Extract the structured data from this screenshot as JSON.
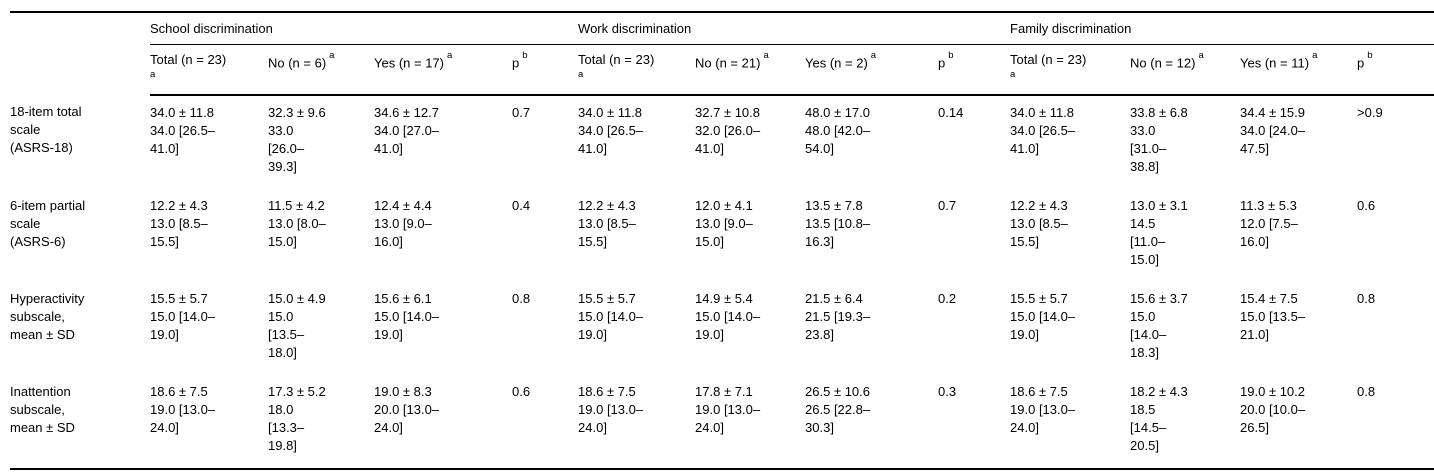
{
  "table": {
    "colors": {
      "background": "#ffffff",
      "text": "#000000",
      "rule": "#000000"
    },
    "groups": [
      {
        "name": "School discrimination",
        "columns": [
          {
            "label": "Total (n = 23)",
            "sup": "a"
          },
          {
            "label": "No (n = 6)",
            "sup": "a"
          },
          {
            "label": "Yes (n = 17)",
            "sup": "a"
          },
          {
            "label": "p",
            "sup": "b"
          }
        ]
      },
      {
        "name": "Work discrimination",
        "columns": [
          {
            "label": "Total (n = 23)",
            "sup": "a"
          },
          {
            "label": "No (n = 21)",
            "sup": "a"
          },
          {
            "label": "Yes (n = 2)",
            "sup": "a"
          },
          {
            "label": "p",
            "sup": "b"
          }
        ]
      },
      {
        "name": "Family discrimination",
        "columns": [
          {
            "label": "Total (n = 23)",
            "sup": "a"
          },
          {
            "label": "No (n = 12)",
            "sup": "a"
          },
          {
            "label": "Yes (n = 11)",
            "sup": "a"
          },
          {
            "label": "p",
            "sup": "b"
          }
        ]
      }
    ],
    "rows": [
      {
        "label": "18-item total\nscale\n(ASRS-18)",
        "cells": [
          "34.0 ± 11.8\n34.0 [26.5–\n41.0]",
          "32.3 ± 9.6\n33.0\n[26.0–\n39.3]",
          "34.6 ± 12.7\n34.0 [27.0–\n41.0]",
          "0.7",
          "34.0 ± 11.8\n34.0 [26.5–\n41.0]",
          "32.7 ± 10.8\n32.0 [26.0–\n41.0]",
          "48.0 ± 17.0\n48.0 [42.0–\n54.0]",
          "0.14",
          "34.0 ± 11.8\n34.0 [26.5–\n41.0]",
          "33.8 ± 6.8\n33.0\n[31.0–\n38.8]",
          "34.4 ± 15.9\n34.0 [24.0–\n47.5]",
          ">0.9"
        ]
      },
      {
        "label": "6-item partial\nscale\n(ASRS-6)",
        "cells": [
          "12.2 ± 4.3\n13.0 [8.5–\n15.5]",
          "11.5 ± 4.2\n13.0 [8.0–\n15.0]",
          "12.4 ± 4.4\n13.0 [9.0–\n16.0]",
          "0.4",
          "12.2 ± 4.3\n13.0 [8.5–\n15.5]",
          "12.0 ± 4.1\n13.0 [9.0–\n15.0]",
          "13.5 ± 7.8\n13.5 [10.8–\n16.3]",
          "0.7",
          "12.2 ± 4.3\n13.0 [8.5–\n15.5]",
          "13.0 ± 3.1\n14.5\n[11.0–\n15.0]",
          "11.3 ± 5.3\n12.0 [7.5–\n16.0]",
          "0.6"
        ]
      },
      {
        "label": "Hyperactivity\nsubscale,\nmean ± SD",
        "cells": [
          "15.5 ± 5.7\n15.0 [14.0–\n19.0]",
          "15.0 ± 4.9\n15.0\n[13.5–\n18.0]",
          "15.6 ± 6.1\n15.0 [14.0–\n19.0]",
          "0.8",
          "15.5 ± 5.7\n15.0 [14.0–\n19.0]",
          "14.9 ± 5.4\n15.0 [14.0–\n19.0]",
          "21.5 ± 6.4\n21.5 [19.3–\n23.8]",
          "0.2",
          "15.5 ± 5.7\n15.0 [14.0–\n19.0]",
          "15.6 ± 3.7\n15.0\n[14.0–\n18.3]",
          "15.4 ± 7.5\n15.0 [13.5–\n21.0]",
          "0.8"
        ]
      },
      {
        "label": "Inattention\nsubscale,\nmean ± SD",
        "cells": [
          "18.6 ± 7.5\n19.0 [13.0–\n24.0]",
          "17.3 ± 5.2\n18.0\n[13.3–\n19.8]",
          "19.0 ± 8.3\n20.0 [13.0–\n24.0]",
          "0.6",
          "18.6 ± 7.5\n19.0 [13.0–\n24.0]",
          "17.8 ± 7.1\n19.0 [13.0–\n24.0]",
          "26.5 ± 10.6\n26.5 [22.8–\n30.3]",
          "0.3",
          "18.6 ± 7.5\n19.0 [13.0–\n24.0]",
          "18.2 ± 4.3\n18.5\n[14.5–\n20.5]",
          "19.0 ± 10.2\n20.0 [10.0–\n26.5]",
          "0.8"
        ]
      }
    ]
  }
}
